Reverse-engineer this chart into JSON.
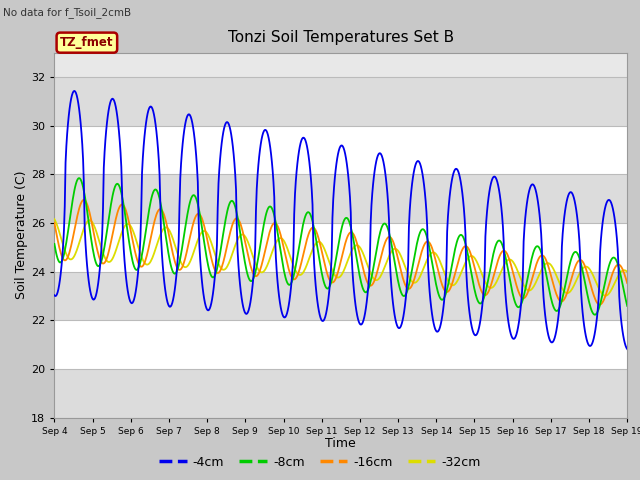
{
  "title": "Tonzi Soil Temperatures Set B",
  "xlabel": "Time",
  "ylabel": "Soil Temperature (C)",
  "note": "No data for f_Tsoil_2cmB",
  "legend_label": "TZ_fmet",
  "ylim": [
    18,
    33
  ],
  "yticks": [
    18,
    20,
    22,
    24,
    26,
    28,
    30,
    32
  ],
  "xlim": [
    4,
    19
  ],
  "xtick_labels": [
    "Sep 4",
    "Sep 5",
    "Sep 6",
    "Sep 7",
    "Sep 8",
    "Sep 9",
    "Sep 10",
    "Sep 11",
    "Sep 12",
    "Sep 13",
    "Sep 14",
    "Sep 15",
    "Sep 16",
    "Sep 17",
    "Sep 18",
    "Sep 19"
  ],
  "series_colors": {
    "-4cm": "#0000EE",
    "-8cm": "#00CC00",
    "-16cm": "#FF8800",
    "-32cm": "#DDDD00"
  },
  "fig_facecolor": "#C8C8C8",
  "ax_facecolor": "#E8E8E8",
  "band_color_light": "#FFFFFF",
  "band_color_dark": "#DCDCDC",
  "grid_color": "#BBBBBB",
  "legend_box_facecolor": "#FFFF99",
  "legend_box_edgecolor": "#AA0000",
  "legend_text_color": "#8B0000"
}
